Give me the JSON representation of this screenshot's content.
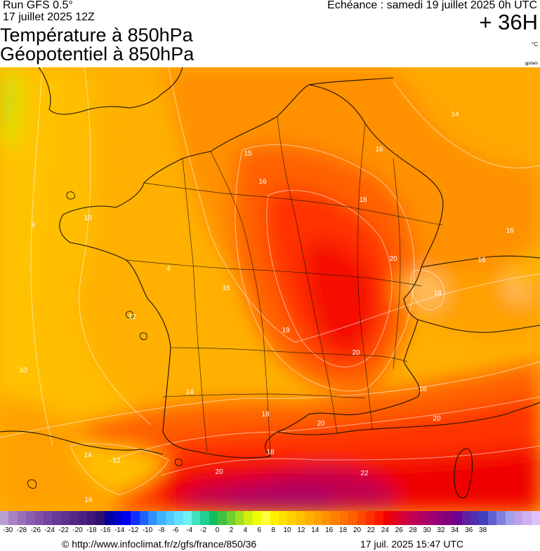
{
  "header": {
    "run": "Run GFS 0.5°",
    "run_date": "17 juillet 2025 12Z",
    "title_line1": "Température à 850hPa",
    "title_line2": "Géopotentiel à 850hPa",
    "echeance": "Echéance : samedi 19 juillet 2025 0h UTC",
    "lead_time": "+ 36H",
    "unit": "°C",
    "credit": "gpdam"
  },
  "map": {
    "region": "France",
    "field": "temperature_850hPa",
    "isotherm_labels": [
      {
        "text": "14",
        "name": "isotherm-label-14-ne"
      },
      {
        "text": "15",
        "name": "isotherm-label-15-north"
      },
      {
        "text": "16",
        "name": "isotherm-label-16-north"
      },
      {
        "text": "16",
        "name": "isotherm-label-16-paris"
      },
      {
        "text": "18",
        "name": "isotherm-label-18-east"
      },
      {
        "text": "16",
        "name": "isotherm-label-16-swiss"
      },
      {
        "text": "16",
        "name": "isotherm-label-16-alps"
      },
      {
        "text": "18",
        "name": "isotherm-label-18-alps"
      },
      {
        "text": "20",
        "name": "isotherm-label-20-east"
      },
      {
        "text": "16",
        "name": "isotherm-label-16-center"
      },
      {
        "text": "8",
        "name": "isotherm-label-8-brittany"
      },
      {
        "text": "10",
        "name": "isotherm-label-10-brittany"
      },
      {
        "text": "4",
        "name": "isotherm-label-4-west"
      },
      {
        "text": "12",
        "name": "isotherm-label-12-atlantic"
      },
      {
        "text": "10",
        "name": "isotherm-label-10-atlantic"
      },
      {
        "text": "19",
        "name": "isotherm-label-19-center"
      },
      {
        "text": "20",
        "name": "isotherm-label-20-center"
      },
      {
        "text": "16",
        "name": "isotherm-label-16-southeast"
      },
      {
        "text": "14",
        "name": "isotherm-label-14-southwest"
      },
      {
        "text": "18",
        "name": "isotherm-label-18-south"
      },
      {
        "text": "18",
        "name": "isotherm-label-18-gulf"
      },
      {
        "text": "20",
        "name": "isotherm-label-20-gulf"
      },
      {
        "text": "20",
        "name": "isotherm-label-20-ligurian"
      },
      {
        "text": "14",
        "name": "isotherm-label-14-spain"
      },
      {
        "text": "12",
        "name": "isotherm-label-12-spain"
      },
      {
        "text": "20",
        "name": "isotherm-label-20-spain"
      },
      {
        "text": "22",
        "name": "isotherm-label-22-med"
      },
      {
        "text": "16",
        "name": "isotherm-label-16-sw-corner"
      }
    ]
  },
  "colorbar": {
    "colors": [
      "#b8a0d0",
      "#a882c4",
      "#9a6fba",
      "#8c5cb0",
      "#8050a8",
      "#7344a0",
      "#683a98",
      "#5e3090",
      "#542888",
      "#4a2080",
      "#3c1878",
      "#301070",
      "#0000a0",
      "#0000c8",
      "#0000f0",
      "#1030ff",
      "#2060ff",
      "#3090ff",
      "#40b0ff",
      "#50c8ff",
      "#60e0ff",
      "#70f0f0",
      "#40e0c0",
      "#20d090",
      "#10c060",
      "#40c040",
      "#70d030",
      "#a0e020",
      "#d0f010",
      "#f0ff00",
      "#ffff40",
      "#fff000",
      "#ffe000",
      "#ffd000",
      "#ffc000",
      "#ffb000",
      "#ffa000",
      "#ff9000",
      "#ff8000",
      "#ff7000",
      "#ff6000",
      "#ff4800",
      "#ff3000",
      "#ff1800",
      "#f00000",
      "#e00020",
      "#d00040",
      "#c00050",
      "#b00060",
      "#a00070",
      "#900078",
      "#800080",
      "#700090",
      "#6020a0",
      "#5030b0",
      "#4040c0",
      "#6060d0",
      "#8080e0",
      "#a0a0f0",
      "#c0a0e8",
      "#d0b0f0",
      "#e0c0f8"
    ],
    "tick_labels": [
      "-30",
      "-28",
      "-26",
      "-24",
      "-22",
      "-20",
      "-18",
      "-16",
      "-14",
      "-12",
      "-10",
      "-8",
      "-6",
      "-4",
      "-2",
      "0",
      "2",
      "4",
      "6",
      "8",
      "10",
      "12",
      "14",
      "16",
      "18",
      "20",
      "22",
      "24",
      "26",
      "28",
      "30",
      "32",
      "34",
      "36",
      "38"
    ]
  },
  "footer": {
    "url": "© http://www.infoclimat.fr/z/gfs/france/850/36",
    "timestamp": "17 juil. 2025 15:47 UTC"
  }
}
